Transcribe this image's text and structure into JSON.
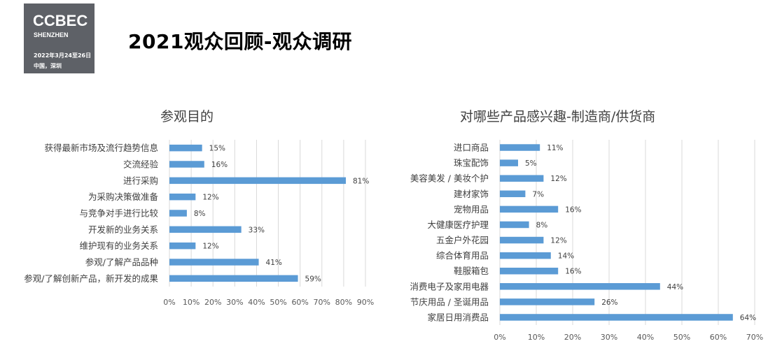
{
  "logo": {
    "name": "CCBEC",
    "city": "SHENZHEN",
    "date": "2022年3月24至26日",
    "place": "中国，深圳",
    "bg_color": "#5e6167"
  },
  "page_title": "2021观众回顾-观众调研",
  "chart_data": [
    {
      "type": "bar",
      "orientation": "horizontal",
      "title": "参观目的",
      "categories": [
        "获得最新市场及流行趋势信息",
        "交流经验",
        "进行采购",
        "为采购决策做准备",
        "与竞争对手进行比较",
        "开发新的业务关系",
        "维护现有的业务关系",
        "参观/了解产品品种",
        "参观/了解创新产品，新开发的成果"
      ],
      "values": [
        15,
        16,
        81,
        12,
        8,
        33,
        12,
        41,
        59
      ],
      "value_labels": [
        "15%",
        "16%",
        "81%",
        "12%",
        "8%",
        "33%",
        "12%",
        "41%",
        "59%"
      ],
      "xlim": [
        0,
        90
      ],
      "x_ticks": [
        "0%",
        "10%",
        "20%",
        "30%",
        "40%",
        "50%",
        "60%",
        "70%",
        "80%",
        "90%"
      ],
      "color": "#5b9bd5",
      "grid": true
    },
    {
      "type": "bar",
      "orientation": "horizontal",
      "title": "对哪些产品感兴趣-制造商/供货商",
      "categories": [
        "进口商品",
        "珠宝配饰",
        "美容美发 / 美妆个护",
        "建材家饰",
        "宠物用品",
        "大健康医疗护理",
        "五金户外花园",
        "综合体育用品",
        "鞋服箱包",
        "消费电子及家用电器",
        "节庆用品 / 圣诞用品",
        "家居日用消费品"
      ],
      "values": [
        11,
        5,
        12,
        7,
        16,
        8,
        12,
        14,
        16,
        44,
        26,
        64
      ],
      "value_labels": [
        "11%",
        "5%",
        "12%",
        "7%",
        "16%",
        "8%",
        "12%",
        "14%",
        "16%",
        "44%",
        "26%",
        "64%"
      ],
      "xlim": [
        0,
        70
      ],
      "x_ticks": [
        "0%",
        "10%",
        "20%",
        "30%",
        "40%",
        "50%",
        "60%",
        "70%"
      ],
      "color": "#5b9bd5",
      "grid": true
    }
  ]
}
